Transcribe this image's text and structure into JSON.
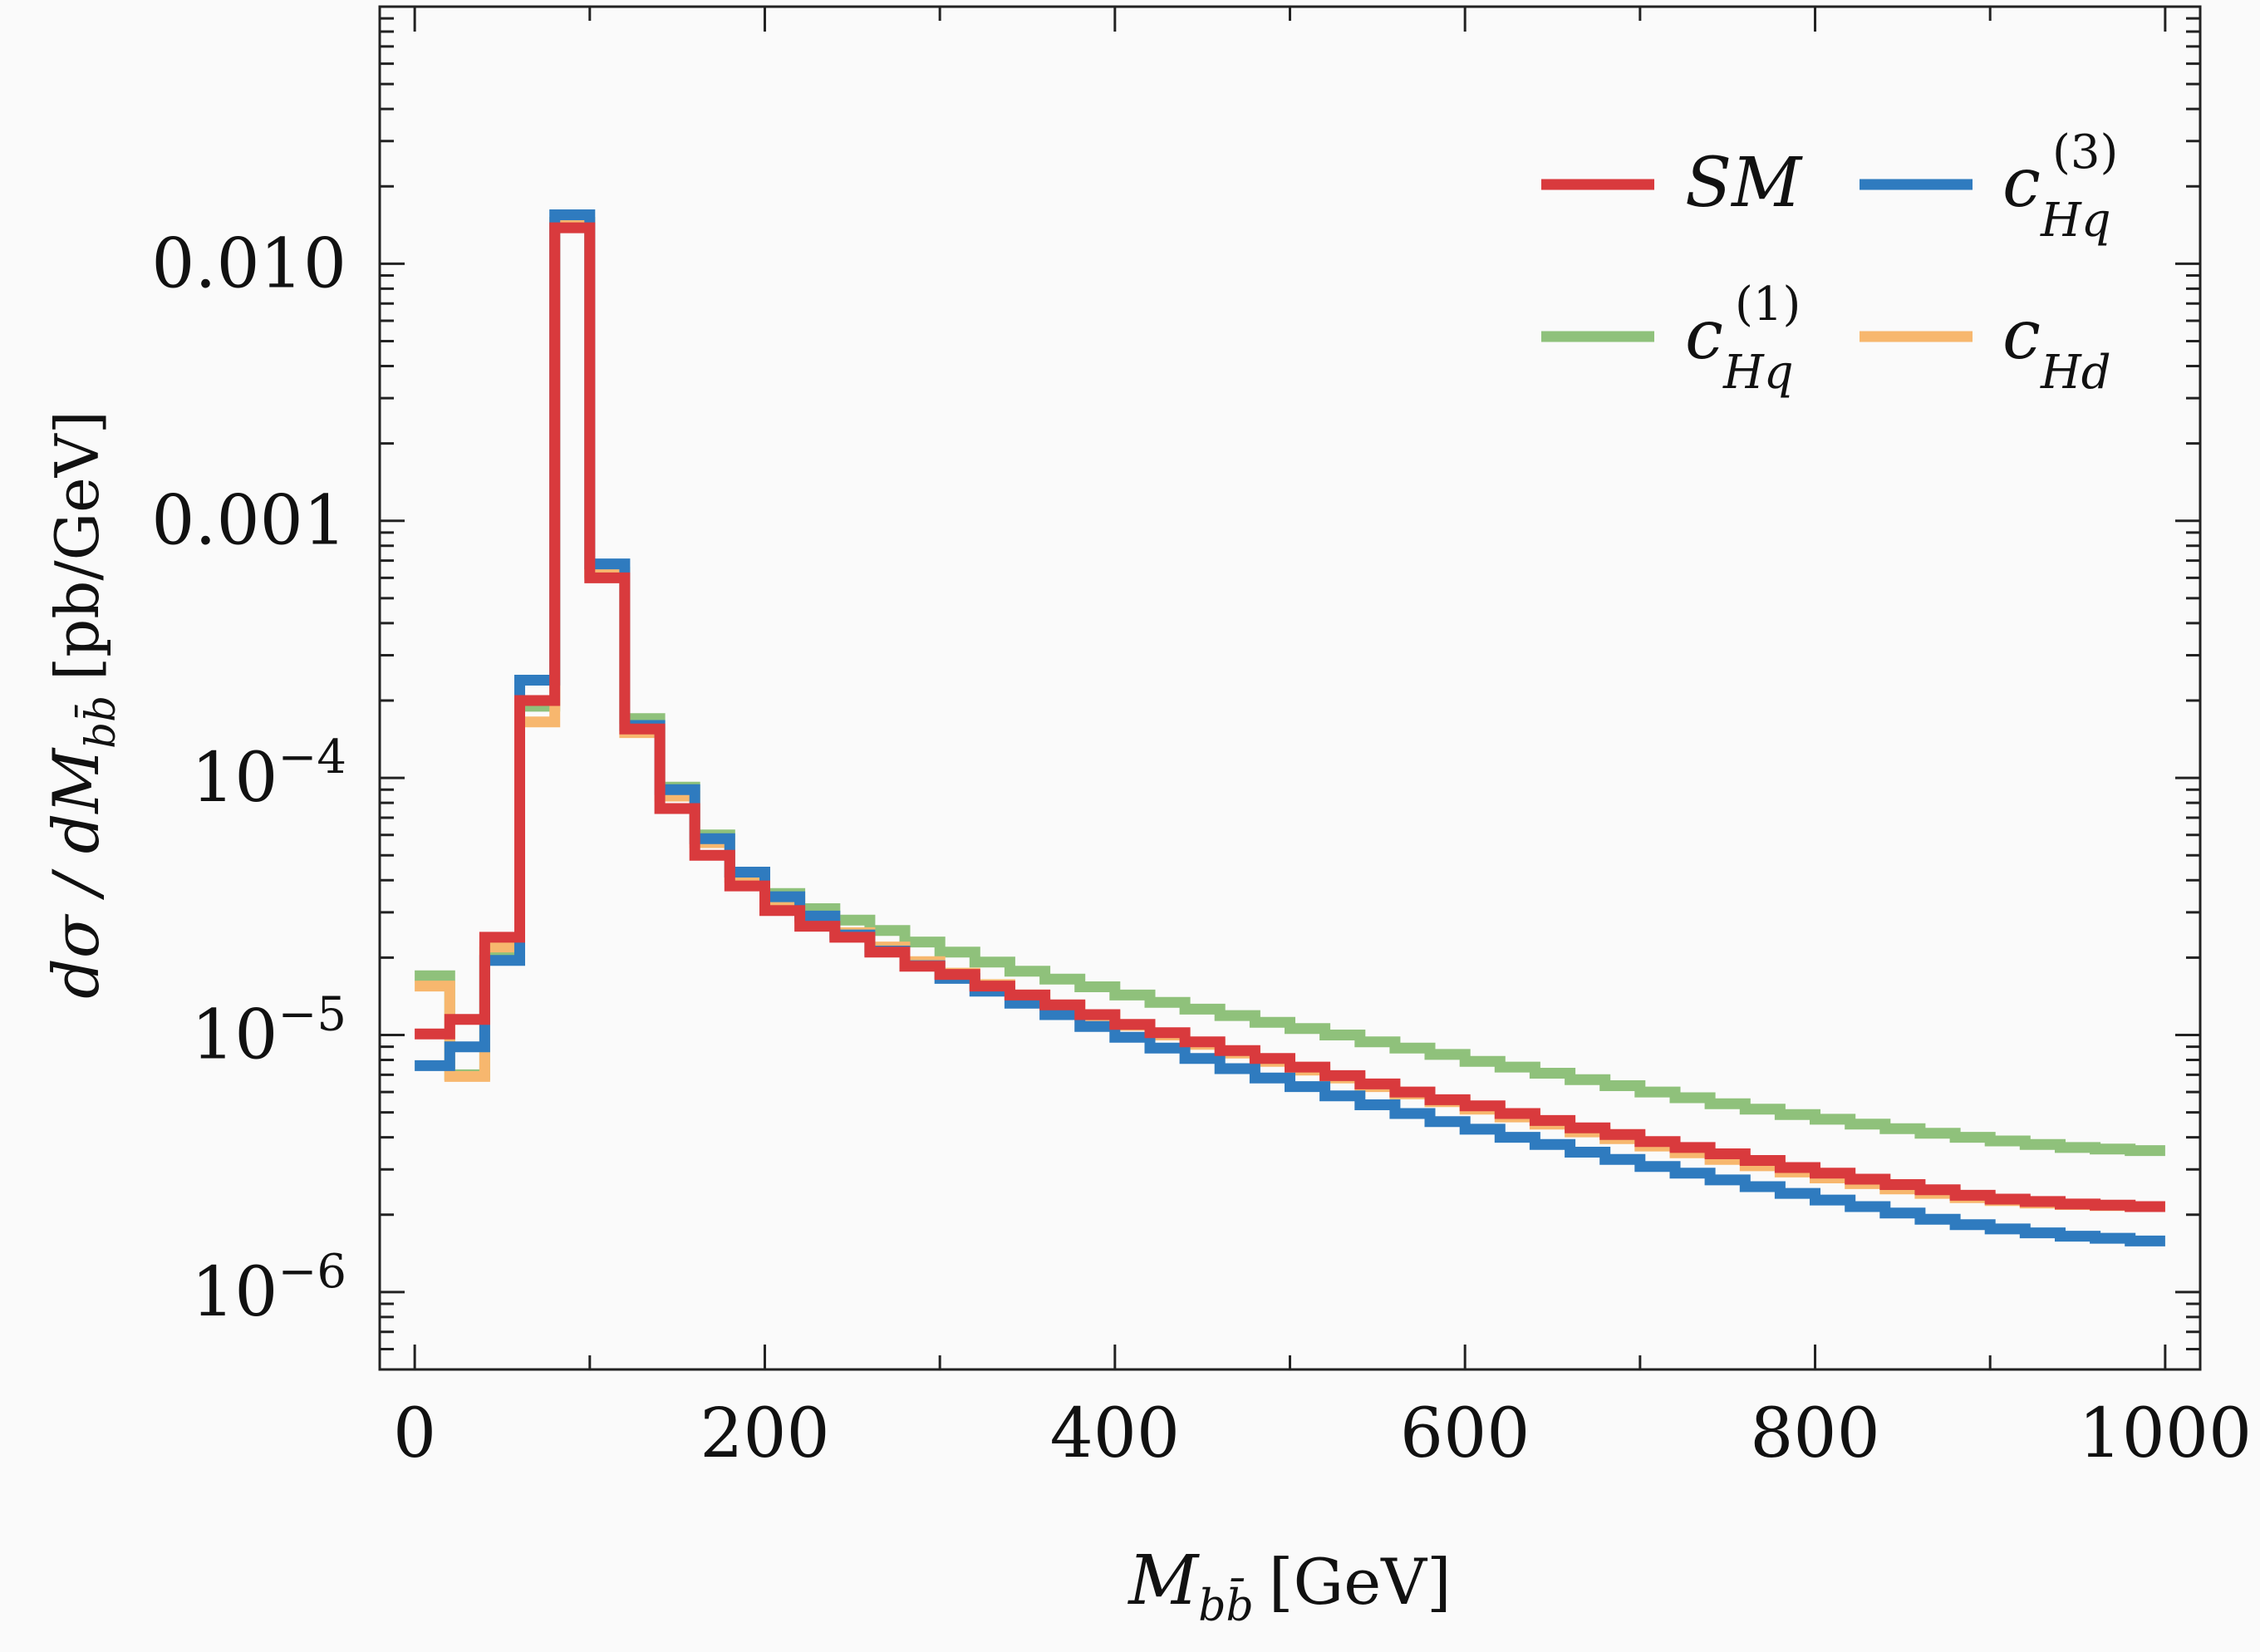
{
  "chart_data": {
    "type": "line",
    "step": true,
    "x_bin_width": 20,
    "xlim": [
      -20,
      1020
    ],
    "ylim": [
      5e-07,
      0.1
    ],
    "y_scale": "log",
    "xlabel": {
      "main": "M",
      "sub": "bb̄",
      "unit": "[GeV]"
    },
    "ylabel": {
      "main": "dσ / dM",
      "sub": "bb̄",
      "unit": "[pb/GeV]"
    },
    "x_ticks": [
      0,
      200,
      400,
      600,
      800,
      1000
    ],
    "x_tick_labels": [
      "0",
      "200",
      "400",
      "600",
      "800",
      "1000"
    ],
    "y_ticks": [
      1e-06,
      1e-05,
      0.0001,
      0.001,
      0.01
    ],
    "y_tick_labels": [
      {
        "main": "10",
        "sup": "−6"
      },
      {
        "main": "10",
        "sup": "−5"
      },
      {
        "main": "10",
        "sup": "−4"
      },
      {
        "main": "0.001",
        "sup": ""
      },
      {
        "main": "0.010",
        "sup": ""
      }
    ],
    "legend_position": "top-right",
    "series": [
      {
        "name": "SM",
        "name_main": "SM",
        "name_sub": "",
        "name_sup": "",
        "color": "#d93a3d",
        "values": [
          1.01e-05,
          1.15e-05,
          2.4e-05,
          0.0002,
          0.0138,
          0.0006,
          0.000155,
          7.6e-05,
          5e-05,
          3.8e-05,
          3.05e-05,
          2.65e-05,
          2.4e-05,
          2.1e-05,
          1.85e-05,
          1.72e-05,
          1.55e-05,
          1.43e-05,
          1.31e-05,
          1.2e-05,
          1.1e-05,
          1.02e-05,
          9.4e-06,
          8.7e-06,
          8.1e-06,
          7.5e-06,
          6.95e-06,
          6.45e-06,
          6e-06,
          5.6e-06,
          5.3e-06,
          4.95e-06,
          4.65e-06,
          4.35e-06,
          4.1e-06,
          3.85e-06,
          3.65e-06,
          3.45e-06,
          3.25e-06,
          3.05e-06,
          2.9e-06,
          2.75e-06,
          2.62e-06,
          2.5e-06,
          2.38e-06,
          2.3e-06,
          2.25e-06,
          2.2e-06,
          2.18e-06,
          2.15e-06
        ]
      },
      {
        "name": "c_Hq^(3)",
        "name_main": "c",
        "name_sub": "Hq",
        "name_sup": "(3)",
        "color": "#2f7bbf",
        "values": [
          7.6e-06,
          9e-06,
          1.95e-05,
          0.00024,
          0.0155,
          0.00068,
          0.00016,
          9e-05,
          5.8e-05,
          4.3e-05,
          3.45e-05,
          2.9e-05,
          2.45e-05,
          2.12e-05,
          1.86e-05,
          1.66e-05,
          1.48e-05,
          1.33e-05,
          1.2e-05,
          1.08e-05,
          9.8e-06,
          8.9e-06,
          8.1e-06,
          7.4e-06,
          6.8e-06,
          6.3e-06,
          5.8e-06,
          5.35e-06,
          4.95e-06,
          4.6e-06,
          4.3e-06,
          4e-06,
          3.75e-06,
          3.5e-06,
          3.28e-06,
          3.08e-06,
          2.9e-06,
          2.73e-06,
          2.57e-06,
          2.42e-06,
          2.28e-06,
          2.15e-06,
          2.03e-06,
          1.92e-06,
          1.83e-06,
          1.76e-06,
          1.7e-06,
          1.65e-06,
          1.62e-06,
          1.58e-06
        ]
      },
      {
        "name": "c_Hq^(1)",
        "name_main": "c",
        "name_sub": "Hq",
        "name_sup": "(1)",
        "color": "#8fc17b",
        "values": [
          1.7e-05,
          7e-06,
          2.1e-05,
          0.00019,
          0.0145,
          0.00063,
          0.00017,
          9.2e-05,
          6e-05,
          4.3e-05,
          3.55e-05,
          3.1e-05,
          2.8e-05,
          2.55e-05,
          2.3e-05,
          2.1e-05,
          1.92e-05,
          1.77e-05,
          1.65e-05,
          1.54e-05,
          1.43e-05,
          1.34e-05,
          1.26e-05,
          1.19e-05,
          1.12e-05,
          1.06e-05,
          1e-05,
          9.4e-06,
          8.9e-06,
          8.4e-06,
          7.9e-06,
          7.5e-06,
          7.1e-06,
          6.7e-06,
          6.35e-06,
          6e-06,
          5.7e-06,
          5.4e-06,
          5.15e-06,
          4.9e-06,
          4.7e-06,
          4.5e-06,
          4.32e-06,
          4.15e-06,
          4e-06,
          3.87e-06,
          3.75e-06,
          3.65e-06,
          3.6e-06,
          3.55e-06
        ]
      },
      {
        "name": "c_Hd",
        "name_main": "c",
        "name_sub": "Hd",
        "name_sup": "",
        "color": "#f7b76e",
        "values": [
          1.55e-05,
          6.9e-06,
          2.2e-05,
          0.000165,
          0.0145,
          0.00062,
          0.00015,
          8.5e-05,
          5.6e-05,
          4.1e-05,
          3.3e-05,
          2.85e-05,
          2.5e-05,
          2.2e-05,
          1.93e-05,
          1.74e-05,
          1.57e-05,
          1.43e-05,
          1.3e-05,
          1.19e-05,
          1.09e-05,
          1e-05,
          9.2e-06,
          8.5e-06,
          7.9e-06,
          7.3e-06,
          6.8e-06,
          6.3e-06,
          5.9e-06,
          5.5e-06,
          5.15e-06,
          4.8e-06,
          4.5e-06,
          4.2e-06,
          3.95e-06,
          3.7e-06,
          3.48e-06,
          3.28e-06,
          3.1e-06,
          2.93e-06,
          2.78e-06,
          2.64e-06,
          2.52e-06,
          2.42e-06,
          2.33e-06,
          2.27e-06,
          2.22e-06,
          2.19e-06,
          2.17e-06,
          2.15e-06
        ]
      }
    ],
    "legend_order": [
      0,
      1,
      2,
      3
    ]
  }
}
